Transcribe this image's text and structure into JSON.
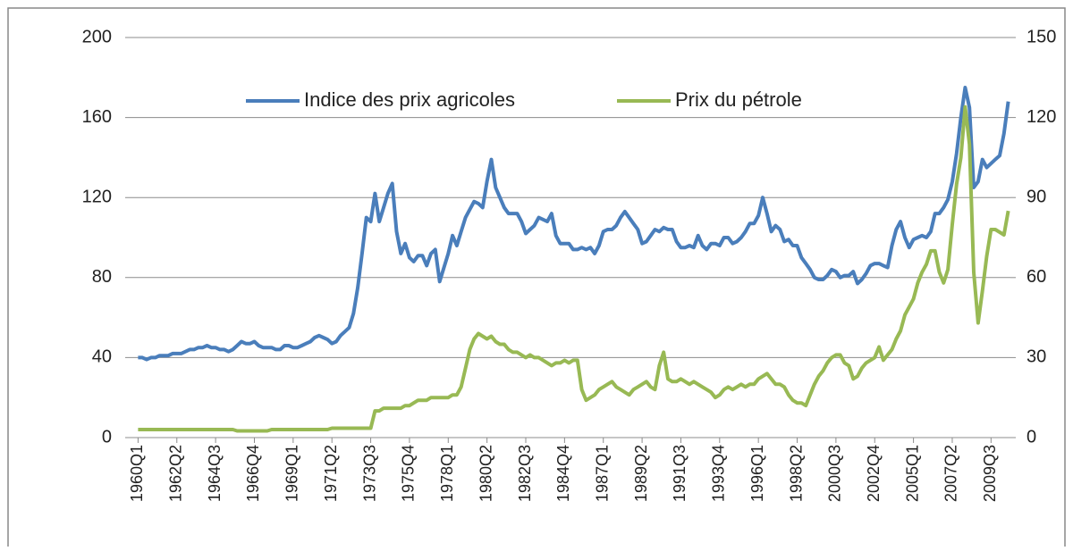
{
  "chart_data": {
    "type": "line",
    "categories": [
      "1960Q1",
      null,
      null,
      null,
      null,
      null,
      null,
      null,
      null,
      "1962Q2",
      null,
      null,
      null,
      null,
      null,
      null,
      null,
      null,
      "1964Q3",
      null,
      null,
      null,
      null,
      null,
      null,
      null,
      null,
      "1966Q4",
      null,
      null,
      null,
      null,
      null,
      null,
      null,
      null,
      "1969Q1",
      null,
      null,
      null,
      null,
      null,
      null,
      null,
      null,
      "1971Q2",
      null,
      null,
      null,
      null,
      null,
      null,
      null,
      null,
      "1973Q3",
      null,
      null,
      null,
      null,
      null,
      null,
      null,
      null,
      "1975Q4",
      null,
      null,
      null,
      null,
      null,
      null,
      null,
      null,
      "1978Q1",
      null,
      null,
      null,
      null,
      null,
      null,
      null,
      null,
      "1980Q2",
      null,
      null,
      null,
      null,
      null,
      null,
      null,
      null,
      "1982Q3",
      null,
      null,
      null,
      null,
      null,
      null,
      null,
      null,
      "1984Q4",
      null,
      null,
      null,
      null,
      null,
      null,
      null,
      null,
      "1987Q1",
      null,
      null,
      null,
      null,
      null,
      null,
      null,
      null,
      "1989Q2",
      null,
      null,
      null,
      null,
      null,
      null,
      null,
      null,
      "1991Q3",
      null,
      null,
      null,
      null,
      null,
      null,
      null,
      null,
      "1993Q4",
      null,
      null,
      null,
      null,
      null,
      null,
      null,
      null,
      "1996Q1",
      null,
      null,
      null,
      null,
      null,
      null,
      null,
      null,
      "1998Q2",
      null,
      null,
      null,
      null,
      null,
      null,
      null,
      null,
      "2000Q3",
      null,
      null,
      null,
      null,
      null,
      null,
      null,
      null,
      "2002Q4",
      null,
      null,
      null,
      null,
      null,
      null,
      null,
      null,
      "2005Q1",
      null,
      null,
      null,
      null,
      null,
      null,
      null,
      null,
      "2007Q2",
      null,
      null,
      null,
      null,
      null,
      null,
      null,
      null,
      "2009Q3",
      null,
      null,
      null,
      null
    ],
    "series": [
      {
        "name": "Indice des prix agricoles",
        "color": "#4a7ebb",
        "values": [
          40,
          40,
          39,
          40,
          40,
          41,
          41,
          41,
          42,
          42,
          42,
          43,
          44,
          44,
          45,
          45,
          46,
          45,
          45,
          44,
          44,
          43,
          44,
          46,
          48,
          47,
          47,
          48,
          46,
          45,
          45,
          45,
          44,
          44,
          46,
          46,
          45,
          45,
          46,
          47,
          48,
          50,
          51,
          50,
          49,
          47,
          48,
          51,
          53,
          55,
          62,
          75,
          92,
          110,
          108,
          122,
          108,
          115,
          122,
          127,
          103,
          92,
          97,
          90,
          88,
          91,
          91,
          86,
          92,
          94,
          78,
          85,
          92,
          101,
          96,
          103,
          110,
          114,
          118,
          117,
          115,
          128,
          139,
          125,
          120,
          115,
          112,
          112,
          112,
          108,
          102,
          104,
          106,
          110,
          109,
          108,
          112,
          101,
          97,
          97,
          97,
          94,
          94,
          95,
          94,
          95,
          92,
          96,
          103,
          104,
          104,
          106,
          110,
          113,
          110,
          107,
          104,
          97,
          98,
          101,
          104,
          103,
          105,
          104,
          104,
          98,
          95,
          95,
          96,
          95,
          101,
          96,
          94,
          97,
          97,
          96,
          100,
          100,
          97,
          98,
          100,
          103,
          107,
          107,
          111,
          120,
          112,
          103,
          106,
          104,
          98,
          99,
          96,
          96,
          90,
          87,
          84,
          80,
          79,
          79,
          81,
          84,
          83,
          80,
          81,
          81,
          83,
          77,
          79,
          82,
          86,
          87,
          87,
          86,
          85,
          96,
          104,
          108,
          100,
          95,
          99,
          100,
          101,
          100,
          103,
          112,
          112,
          115,
          119,
          128,
          142,
          160,
          175,
          165,
          125,
          128,
          139,
          135,
          137,
          139,
          141,
          152,
          168
        ]
      },
      {
        "name": "Prix du pétrole",
        "color": "#98b954",
        "axis": "y2",
        "values": [
          3,
          3,
          3,
          3,
          3,
          3,
          3,
          3,
          3,
          3,
          3,
          3,
          3,
          3,
          3,
          3,
          3,
          3,
          3,
          3,
          3,
          3,
          3,
          2.5,
          2.5,
          2.5,
          2.5,
          2.5,
          2.5,
          2.5,
          2.5,
          3,
          3,
          3,
          3,
          3,
          3,
          3,
          3,
          3,
          3,
          3,
          3,
          3,
          3,
          3.5,
          3.5,
          3.5,
          3.5,
          3.5,
          3.5,
          3.5,
          3.5,
          3.5,
          3.5,
          10,
          10,
          11,
          11,
          11,
          11,
          11,
          12,
          12,
          13,
          14,
          14,
          14,
          15,
          15,
          15,
          15,
          15,
          16,
          16,
          19,
          26,
          33,
          37,
          39,
          38,
          37,
          38,
          36,
          35,
          35,
          33,
          32,
          32,
          31,
          30,
          31,
          30,
          30,
          29,
          28,
          27,
          28,
          28,
          29,
          28,
          29,
          29,
          18,
          14,
          15,
          16,
          18,
          19,
          20,
          21,
          19,
          18,
          17,
          16,
          18,
          19,
          20,
          21,
          19,
          18,
          27,
          32,
          22,
          21,
          21,
          22,
          21,
          20,
          21,
          20,
          19,
          18,
          17,
          15,
          16,
          18,
          19,
          18,
          19,
          20,
          19,
          20,
          20,
          22,
          23,
          24,
          22,
          20,
          20,
          19,
          16,
          14,
          13,
          13,
          12,
          16,
          20,
          23,
          25,
          28,
          30,
          31,
          31,
          28,
          27,
          22,
          23,
          26,
          28,
          29,
          30,
          34,
          29,
          31,
          33,
          37,
          40,
          46,
          49,
          52,
          58,
          62,
          65,
          70,
          70,
          62,
          58,
          63,
          80,
          95,
          105,
          124,
          110,
          62,
          43,
          55,
          68,
          78,
          78,
          77,
          76,
          85
        ]
      }
    ],
    "ylim": [
      0,
      200
    ],
    "yticks": [
      0,
      40,
      80,
      120,
      160,
      200
    ],
    "y2lim": [
      0,
      150
    ],
    "y2ticks": [
      0,
      30,
      60,
      90,
      120,
      150
    ],
    "grid": true,
    "legend": "top"
  }
}
